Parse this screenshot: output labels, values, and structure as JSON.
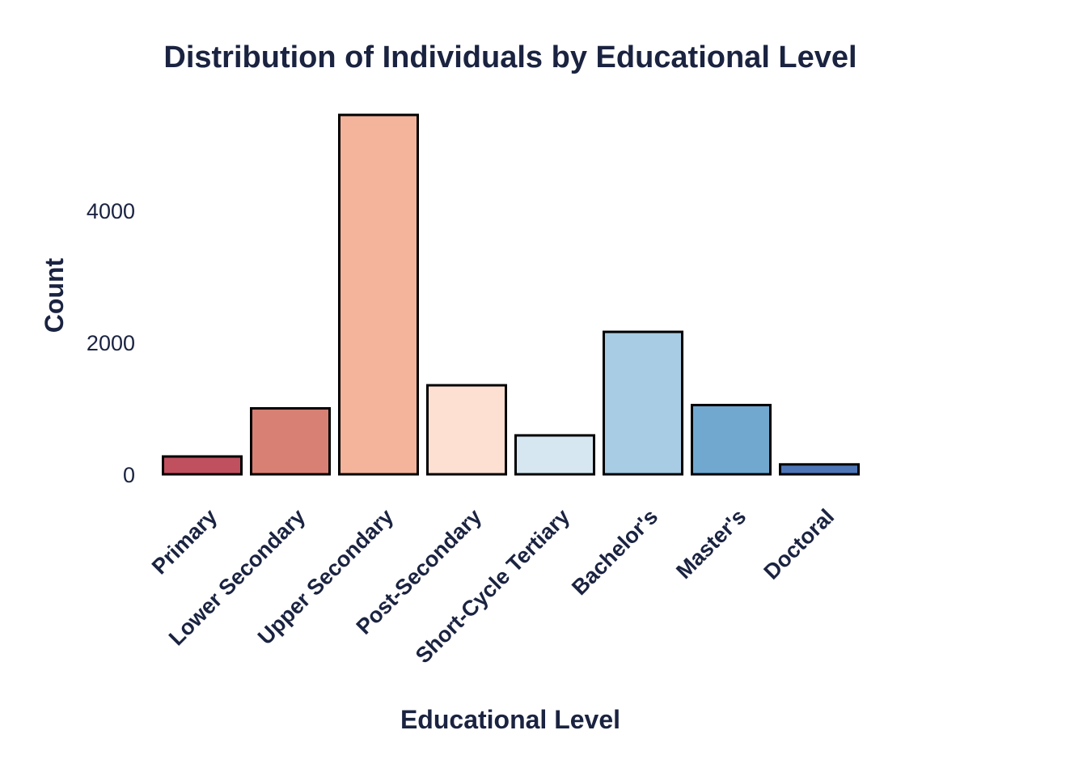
{
  "chart_data": {
    "type": "bar",
    "title": "Distribution of Individuals by Educational Level",
    "xlabel": "Educational Level",
    "ylabel": "Count",
    "categories": [
      "Primary",
      "Lower Secondary",
      "Upper Secondary",
      "Post-Secondary",
      "Short-Cycle Tertiary",
      "Bachelor's",
      "Master's",
      "Doctoral"
    ],
    "values": [
      270,
      1000,
      5450,
      1350,
      590,
      2160,
      1050,
      150
    ],
    "colors": [
      "#c1505f",
      "#d98075",
      "#f4b39b",
      "#fde0d2",
      "#d6e7f2",
      "#a7cce3",
      "#71a8cf",
      "#4e76b7"
    ],
    "yticks": [
      0,
      2000,
      4000
    ],
    "ylim": [
      0,
      5450
    ],
    "grid": false,
    "legend": "none"
  }
}
